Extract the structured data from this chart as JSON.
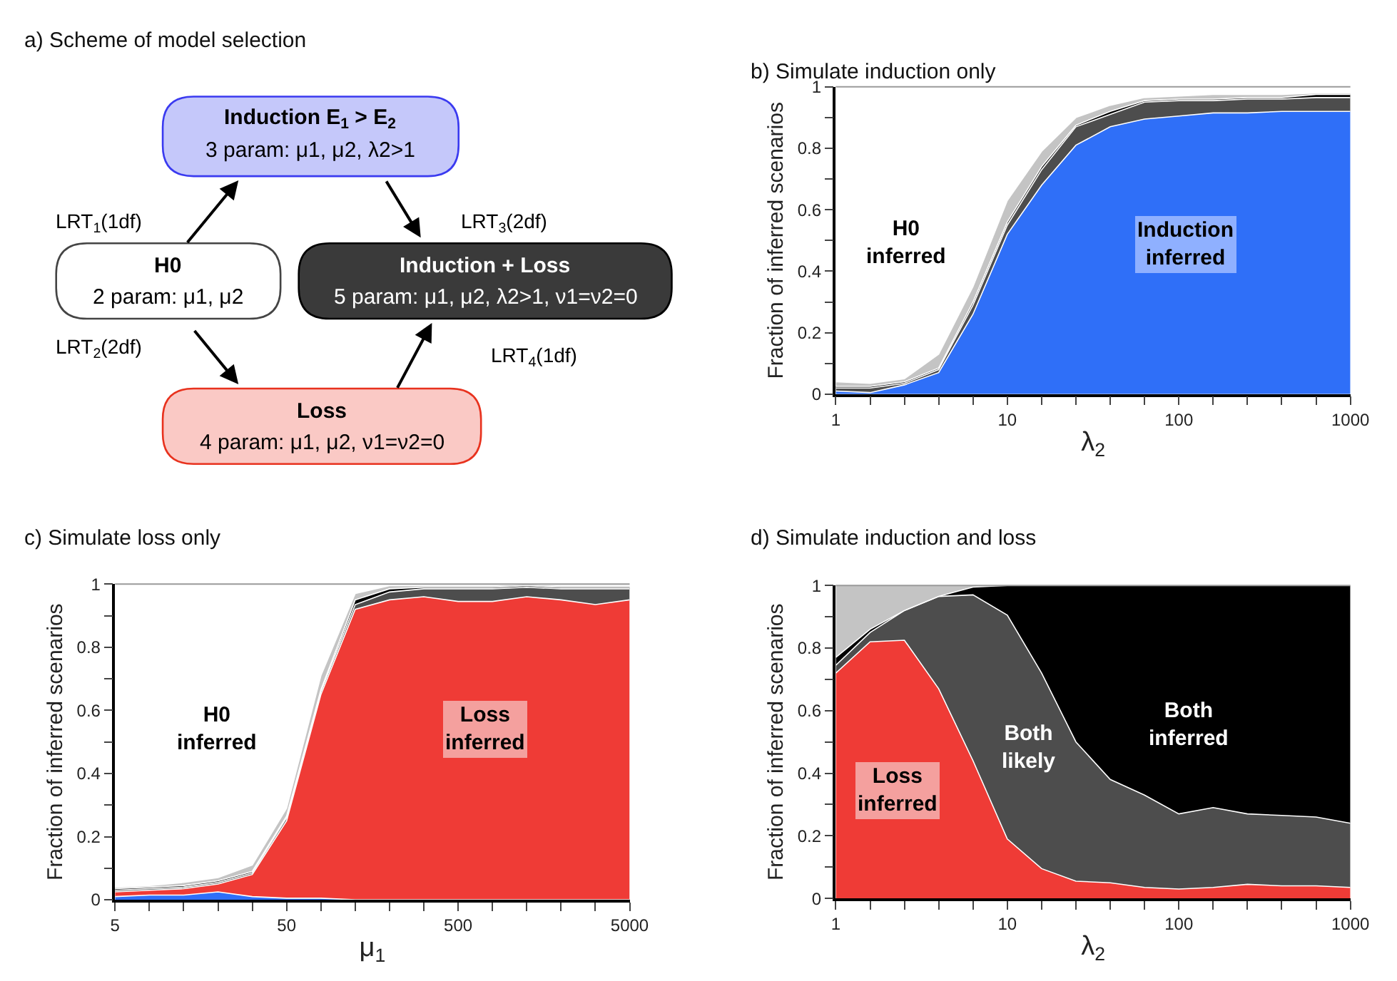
{
  "chart_data": [
    {
      "type": "other",
      "title": "a) Scheme of model selection",
      "annotations": [
        "Induction E$_{1}$ > E$_{2}$",
        "3 param: μ1, μ2, λ2>1",
        "H0",
        "2 param: μ1, μ2",
        "Induction + Loss",
        "5 param: μ1, μ2, λ2>1, ν1=ν2=0",
        "Loss",
        "4 param: μ1, μ2, ν1=ν2=0",
        "LRT$_{1}$(1df)",
        "LRT$_{3}$(2df)",
        "LRT$_{2}$(2df)",
        "LRT$_{4}$(1df)"
      ]
    },
    {
      "type": "area",
      "stacked": true,
      "title": "b) Simulate induction only",
      "xlabel": "λ$_{2}$",
      "ylabel": "Fraction of inferred scenarios",
      "log": "x",
      "x": [
        1,
        1.585,
        2.512,
        3.981,
        6.31,
        10,
        15.85,
        25.12,
        39.81,
        63.1,
        100,
        158.5,
        251.2,
        398.1,
        631,
        1000
      ],
      "xlim": [
        1,
        1000
      ],
      "xticks": [
        1,
        {
          "value": 1.585,
          "label": null
        },
        {
          "value": 2.512,
          "label": null
        },
        {
          "value": 3.981,
          "label": null
        },
        {
          "value": 6.31,
          "label": null
        },
        10,
        {
          "value": 15.85,
          "label": null
        },
        {
          "value": 25.12,
          "label": null
        },
        {
          "value": 39.81,
          "label": null
        },
        {
          "value": 63.1,
          "label": null
        },
        100,
        {
          "value": 158.5,
          "label": null
        },
        {
          "value": 251.2,
          "label": null
        },
        {
          "value": 398.1,
          "label": null
        },
        {
          "value": 631,
          "label": null
        },
        1000
      ],
      "ylim": [
        0,
        1
      ],
      "yticks": [
        0,
        {
          "value": 0.1,
          "label": null
        },
        0.2,
        {
          "value": 0.3,
          "label": null
        },
        0.4,
        {
          "value": 0.5,
          "label": null
        },
        0.6,
        {
          "value": 0.7,
          "label": null
        },
        0.8,
        {
          "value": 0.9,
          "label": null
        },
        1
      ],
      "series": [
        {
          "color": "#2f6ff8",
          "values": [
            0.01,
            0.005,
            0.03,
            0.07,
            0.26,
            0.52,
            0.68,
            0.81,
            0.87,
            0.895,
            0.905,
            0.915,
            0.915,
            0.92,
            0.92,
            0.92
          ]
        },
        {
          "color": "#4d4d4d",
          "values": [
            0.01,
            0.015,
            0.005,
            0.01,
            0.03,
            0.03,
            0.05,
            0.06,
            0.04,
            0.055,
            0.05,
            0.04,
            0.045,
            0.04,
            0.045,
            0.045
          ]
        },
        {
          "color": "#000000",
          "values": [
            0.005,
            0.005,
            0.005,
            0.005,
            0.01,
            0.01,
            0.01,
            0.005,
            0.01,
            0.005,
            0.005,
            0.005,
            0.005,
            0.005,
            0.01,
            0.01
          ]
        },
        {
          "color": "#c4c4c4",
          "values": [
            0.015,
            0.01,
            0.01,
            0.045,
            0.05,
            0.07,
            0.05,
            0.025,
            0.02,
            0.01,
            0.01,
            0.015,
            0.01,
            0.01,
            0.005,
            0.005
          ]
        }
      ],
      "annotations": [
        "H0\ninferred",
        "Induction\ninferred"
      ]
    },
    {
      "type": "area",
      "stacked": true,
      "title": "c) Simulate loss only",
      "xlabel": "μ$_{1}$",
      "ylabel": "Fraction of inferred scenarios",
      "log": "x",
      "x": [
        5,
        7.924,
        12.56,
        19.91,
        31.55,
        50,
        79.24,
        125.6,
        199.1,
        315.5,
        500,
        792.4,
        1256,
        1991,
        3155,
        5000
      ],
      "xlim": [
        5,
        5000
      ],
      "xticks": [
        5,
        {
          "value": 7.924,
          "label": null
        },
        {
          "value": 12.56,
          "label": null
        },
        {
          "value": 19.91,
          "label": null
        },
        {
          "value": 31.55,
          "label": null
        },
        50,
        {
          "value": 79.24,
          "label": null
        },
        {
          "value": 125.6,
          "label": null
        },
        {
          "value": 199.1,
          "label": null
        },
        {
          "value": 315.5,
          "label": null
        },
        500,
        {
          "value": 792.4,
          "label": null
        },
        {
          "value": 1256,
          "label": null
        },
        {
          "value": 1991,
          "label": null
        },
        {
          "value": 3155,
          "label": null
        },
        5000
      ],
      "ylim": [
        0,
        1
      ],
      "yticks": [
        0,
        {
          "value": 0.1,
          "label": null
        },
        0.2,
        {
          "value": 0.3,
          "label": null
        },
        0.4,
        {
          "value": 0.5,
          "label": null
        },
        0.6,
        {
          "value": 0.7,
          "label": null
        },
        0.8,
        {
          "value": 0.9,
          "label": null
        },
        1
      ],
      "series": [
        {
          "color": "#2f6ff8",
          "values": [
            0.01,
            0.015,
            0.015,
            0.025,
            0.01,
            0.005,
            0.005,
            0,
            0,
            0,
            0,
            0,
            0,
            0,
            0,
            0
          ]
        },
        {
          "color": "#ef3b36",
          "values": [
            0.015,
            0.015,
            0.02,
            0.025,
            0.07,
            0.245,
            0.645,
            0.92,
            0.95,
            0.96,
            0.945,
            0.945,
            0.96,
            0.95,
            0.935,
            0.95
          ]
        },
        {
          "color": "#4d4d4d",
          "values": [
            0.005,
            0.005,
            0.005,
            0.005,
            0.005,
            0.01,
            0.01,
            0.015,
            0.025,
            0.025,
            0.04,
            0.04,
            0.03,
            0.035,
            0.05,
            0.035
          ]
        },
        {
          "color": "#000000",
          "values": [
            0.005,
            0.005,
            0.005,
            0.005,
            0.005,
            0.005,
            0.005,
            0.015,
            0.01,
            0.005,
            0.005,
            0.005,
            0.005,
            0.005,
            0.005,
            0.005
          ]
        },
        {
          "color": "#c4c4c4",
          "values": [
            0.005,
            0.005,
            0.01,
            0.01,
            0.02,
            0.025,
            0.045,
            0.02,
            0.01,
            0.005,
            0.005,
            0.005,
            0.005,
            0.005,
            0.005,
            0.005
          ]
        }
      ],
      "annotations": [
        "H0\ninferred",
        "Loss\ninferred"
      ]
    },
    {
      "type": "area",
      "stacked": true,
      "title": "d) Simulate induction and loss",
      "xlabel": "λ$_{2}$",
      "ylabel": "Fraction of inferred scenarios",
      "log": "x",
      "x": [
        1,
        1.585,
        2.512,
        3.981,
        6.31,
        10,
        15.85,
        25.12,
        39.81,
        63.1,
        100,
        158.5,
        251.2,
        398.1,
        631,
        1000
      ],
      "xlim": [
        1,
        1000
      ],
      "xticks": [
        1,
        {
          "value": 1.585,
          "label": null
        },
        {
          "value": 2.512,
          "label": null
        },
        {
          "value": 3.981,
          "label": null
        },
        {
          "value": 6.31,
          "label": null
        },
        10,
        {
          "value": 15.85,
          "label": null
        },
        {
          "value": 25.12,
          "label": null
        },
        {
          "value": 39.81,
          "label": null
        },
        {
          "value": 63.1,
          "label": null
        },
        100,
        {
          "value": 158.5,
          "label": null
        },
        {
          "value": 251.2,
          "label": null
        },
        {
          "value": 398.1,
          "label": null
        },
        {
          "value": 631,
          "label": null
        },
        1000
      ],
      "ylim": [
        0,
        1
      ],
      "yticks": [
        0,
        {
          "value": 0.1,
          "label": null
        },
        0.2,
        {
          "value": 0.3,
          "label": null
        },
        0.4,
        {
          "value": 0.5,
          "label": null
        },
        0.6,
        {
          "value": 0.7,
          "label": null
        },
        0.8,
        {
          "value": 0.9,
          "label": null
        },
        1
      ],
      "series": [
        {
          "color": "#ef3b36",
          "values": [
            0.72,
            0.82,
            0.825,
            0.67,
            0.44,
            0.19,
            0.095,
            0.055,
            0.05,
            0.035,
            0.03,
            0.035,
            0.045,
            0.04,
            0.04,
            0.035
          ]
        },
        {
          "color": "#4d4d4d",
          "values": [
            0.025,
            0.03,
            0.095,
            0.295,
            0.53,
            0.715,
            0.625,
            0.445,
            0.33,
            0.295,
            0.24,
            0.255,
            0.225,
            0.225,
            0.22,
            0.205
          ]
        },
        {
          "color": "#000000",
          "values": [
            0.025,
            0.01,
            0,
            0,
            0.025,
            0.095,
            0.28,
            0.5,
            0.62,
            0.67,
            0.73,
            0.71,
            0.73,
            0.735,
            0.74,
            0.76
          ]
        },
        {
          "color": "#c4c4c4",
          "values": [
            0.23,
            0.14,
            0.08,
            0.035,
            0.005,
            0,
            0,
            0,
            0,
            0,
            0,
            0,
            0,
            0,
            0,
            0
          ]
        }
      ],
      "annotations": [
        "Loss\ninferred",
        "Both\nlikely",
        "Both\ninferred"
      ]
    }
  ]
}
